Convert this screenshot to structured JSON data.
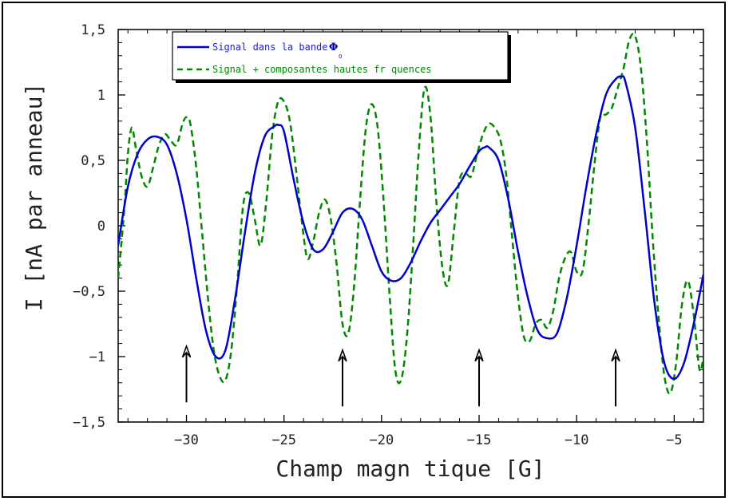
{
  "chart_data": {
    "type": "line",
    "title": "",
    "xlabel": "Champ magn tique [G]",
    "ylabel": "I [nA par anneau]",
    "xlim": [
      -33.5,
      -3.5
    ],
    "ylim": [
      -1.5,
      1.5
    ],
    "xticks": [
      -30,
      -25,
      -20,
      -15,
      -10,
      -5
    ],
    "xtick_labels": [
      "−30",
      "−25",
      "−20",
      "−15",
      "−10",
      "−5"
    ],
    "yticks": [
      -1.5,
      -1,
      -0.5,
      0,
      0.5,
      1,
      1.5
    ],
    "ytick_labels": [
      "−1,5",
      "−1",
      "−0,5",
      "0",
      "0,5",
      "1",
      "1,5"
    ],
    "grid": false,
    "legend_position": "top-left",
    "legend_symbol": "Φ",
    "legend_symbol_sub": "0",
    "series": [
      {
        "name": "Signal dans la bande",
        "color": "#0000cc",
        "style": "solid",
        "x": [
          -33.5,
          -33,
          -32.5,
          -32,
          -31.5,
          -31,
          -30.5,
          -30,
          -29.5,
          -29,
          -28.5,
          -28,
          -27.5,
          -27,
          -26.5,
          -26,
          -25.5,
          -25.3,
          -25,
          -24.5,
          -24,
          -23.5,
          -23,
          -22.5,
          -22,
          -21.5,
          -21,
          -20.5,
          -20,
          -19.5,
          -19,
          -18.5,
          -18,
          -17.5,
          -17,
          -16.5,
          -16,
          -15.5,
          -15,
          -14.7,
          -14.5,
          -14,
          -13.5,
          -13,
          -12.5,
          -12,
          -11.5,
          -11,
          -10.5,
          -10,
          -9.5,
          -9,
          -8.5,
          -8,
          -7.7,
          -7.5,
          -7,
          -6.5,
          -6,
          -5.5,
          -5,
          -4.5,
          -4,
          -3.5
        ],
        "y": [
          -0.15,
          0.3,
          0.55,
          0.66,
          0.68,
          0.62,
          0.4,
          0.05,
          -0.4,
          -0.8,
          -1.0,
          -0.95,
          -0.55,
          -0.05,
          0.4,
          0.68,
          0.76,
          0.77,
          0.72,
          0.35,
          0.02,
          -0.18,
          -0.18,
          -0.05,
          0.1,
          0.13,
          0.05,
          -0.15,
          -0.35,
          -0.42,
          -0.4,
          -0.28,
          -0.12,
          0.02,
          0.12,
          0.22,
          0.32,
          0.45,
          0.57,
          0.6,
          0.6,
          0.5,
          0.2,
          -0.2,
          -0.55,
          -0.8,
          -0.86,
          -0.82,
          -0.55,
          -0.15,
          0.3,
          0.7,
          1.0,
          1.12,
          1.14,
          1.1,
          0.75,
          0.1,
          -0.6,
          -1.05,
          -1.17,
          -1.05,
          -0.75,
          -0.37
        ]
      },
      {
        "name": "Signal + composantes hautes fr quences",
        "color": "#008800",
        "style": "dashed",
        "x": [
          -33.5,
          -33.2,
          -33,
          -32.8,
          -32.6,
          -32.3,
          -32,
          -31.7,
          -31.4,
          -31.1,
          -30.8,
          -30.5,
          -30.2,
          -30,
          -29.8,
          -29.5,
          -29.2,
          -28.9,
          -28.6,
          -28.3,
          -28,
          -27.7,
          -27.4,
          -27.1,
          -26.8,
          -26.5,
          -26.2,
          -25.9,
          -25.6,
          -25.3,
          -25,
          -24.7,
          -24.4,
          -24.1,
          -23.8,
          -23.5,
          -23.2,
          -22.9,
          -22.6,
          -22.3,
          -22,
          -21.7,
          -21.4,
          -21.1,
          -20.8,
          -20.5,
          -20.2,
          -19.9,
          -19.6,
          -19.3,
          -19,
          -18.7,
          -18.4,
          -18.1,
          -17.8,
          -17.5,
          -17.2,
          -16.9,
          -16.6,
          -16.3,
          -16,
          -15.7,
          -15.4,
          -15.1,
          -14.8,
          -14.5,
          -14.2,
          -13.9,
          -13.6,
          -13.3,
          -13,
          -12.7,
          -12.4,
          -12.1,
          -11.8,
          -11.5,
          -11.2,
          -10.9,
          -10.6,
          -10.3,
          -10,
          -9.7,
          -9.4,
          -9.1,
          -8.8,
          -8.5,
          -8.2,
          -7.9,
          -7.6,
          -7.3,
          -7,
          -6.7,
          -6.4,
          -6.1,
          -5.8,
          -5.5,
          -5.2,
          -4.9,
          -4.6,
          -4.3,
          -4,
          -3.7,
          -3.5
        ],
        "y": [
          -0.4,
          0.1,
          0.55,
          0.75,
          0.6,
          0.38,
          0.3,
          0.45,
          0.62,
          0.7,
          0.65,
          0.62,
          0.78,
          0.83,
          0.78,
          0.45,
          -0.05,
          -0.55,
          -0.95,
          -1.15,
          -1.18,
          -0.95,
          -0.45,
          0.15,
          0.25,
          0.05,
          -0.15,
          0.2,
          0.7,
          0.95,
          0.95,
          0.8,
          0.45,
          0.05,
          -0.25,
          -0.12,
          0.1,
          0.2,
          0.05,
          -0.3,
          -0.75,
          -0.82,
          -0.45,
          0.2,
          0.75,
          0.93,
          0.75,
          0.2,
          -0.5,
          -1.1,
          -1.18,
          -0.85,
          -0.2,
          0.55,
          1.05,
          0.85,
          0.2,
          -0.3,
          -0.45,
          -0.05,
          0.35,
          0.4,
          0.38,
          0.55,
          0.7,
          0.78,
          0.75,
          0.65,
          0.38,
          -0.1,
          -0.55,
          -0.85,
          -0.88,
          -0.75,
          -0.72,
          -0.78,
          -0.65,
          -0.4,
          -0.25,
          -0.2,
          -0.35,
          -0.35,
          0.0,
          0.45,
          0.82,
          0.85,
          0.9,
          1.05,
          1.2,
          1.42,
          1.45,
          1.2,
          0.65,
          -0.1,
          -0.7,
          -1.15,
          -1.28,
          -1.05,
          -0.6,
          -0.42,
          -0.68,
          -1.1,
          -1.0
        ]
      }
    ],
    "annotations": [
      {
        "type": "arrow",
        "x": -30,
        "y_tail": -1.35,
        "y_head": -0.92
      },
      {
        "type": "arrow",
        "x": -22,
        "y_tail": -1.38,
        "y_head": -0.95
      },
      {
        "type": "arrow",
        "x": -15,
        "y_tail": -1.38,
        "y_head": -0.95
      },
      {
        "type": "arrow",
        "x": -8,
        "y_tail": -1.38,
        "y_head": -0.95
      }
    ]
  }
}
